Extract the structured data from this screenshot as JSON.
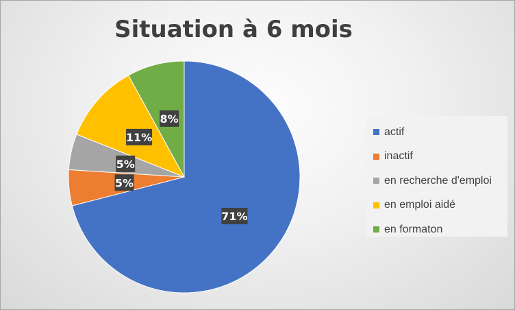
{
  "chart_data": {
    "type": "pie",
    "title": "Situation à 6 mois",
    "categories": [
      "actif",
      "inactif",
      "en recherche d'emploi",
      "en emploi aidé",
      "en formaton"
    ],
    "values": [
      71,
      5,
      5,
      11,
      8
    ],
    "data_labels": [
      "71%",
      "5%",
      "5%",
      "11%",
      "8%"
    ],
    "colors": [
      "#4472C4",
      "#ED7D31",
      "#A5A5A5",
      "#FFC000",
      "#70AD47"
    ],
    "start_angle_deg": 0,
    "direction": "clockwise",
    "legend_position": "right"
  }
}
